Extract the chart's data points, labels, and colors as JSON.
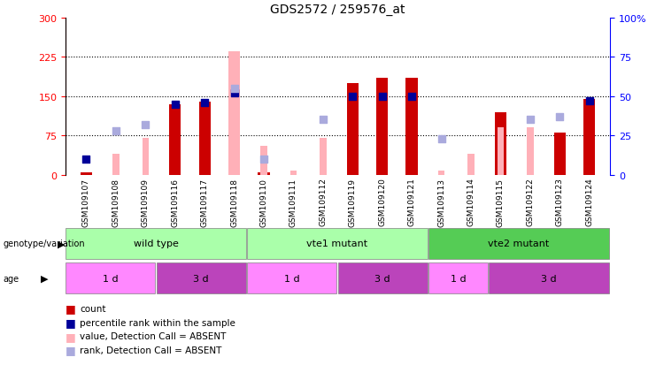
{
  "title": "GDS2572 / 259576_at",
  "samples": [
    "GSM109107",
    "GSM109108",
    "GSM109109",
    "GSM109116",
    "GSM109117",
    "GSM109118",
    "GSM109110",
    "GSM109111",
    "GSM109112",
    "GSM109119",
    "GSM109120",
    "GSM109121",
    "GSM109113",
    "GSM109114",
    "GSM109115",
    "GSM109122",
    "GSM109123",
    "GSM109124"
  ],
  "count_values": [
    5,
    null,
    null,
    135,
    140,
    null,
    5,
    null,
    null,
    175,
    185,
    185,
    null,
    null,
    120,
    null,
    80,
    145
  ],
  "count_absent": [
    null,
    null,
    null,
    null,
    null,
    235,
    null,
    null,
    null,
    null,
    null,
    null,
    null,
    null,
    null,
    null,
    null,
    null
  ],
  "rank_values": [
    10,
    null,
    null,
    45,
    46,
    52,
    null,
    null,
    null,
    50,
    50,
    50,
    null,
    null,
    null,
    null,
    null,
    47
  ],
  "rank_absent": [
    null,
    28,
    32,
    null,
    null,
    55,
    10,
    null,
    35,
    null,
    null,
    null,
    23,
    null,
    null,
    35,
    37,
    null
  ],
  "value_absent": [
    null,
    40,
    70,
    null,
    null,
    235,
    55,
    8,
    70,
    null,
    null,
    null,
    8,
    40,
    90,
    90,
    null,
    null
  ],
  "ylim_left": [
    0,
    300
  ],
  "ylim_right": [
    0,
    100
  ],
  "yticks_left": [
    0,
    75,
    150,
    225,
    300
  ],
  "yticks_right": [
    0,
    25,
    50,
    75,
    100
  ],
  "ytick_labels_right": [
    "0",
    "25",
    "50",
    "75",
    "100%"
  ],
  "hlines": [
    75,
    150,
    225
  ],
  "count_color": "#CC0000",
  "count_absent_color": "#FFB0B8",
  "rank_color": "#000099",
  "rank_absent_color": "#AAAADD",
  "legend_items": [
    {
      "label": "count",
      "color": "#CC0000"
    },
    {
      "label": "percentile rank within the sample",
      "color": "#000099"
    },
    {
      "label": "value, Detection Call = ABSENT",
      "color": "#FFB0B8"
    },
    {
      "label": "rank, Detection Call = ABSENT",
      "color": "#AAAADD"
    }
  ],
  "geno_groups": [
    {
      "label": "wild type",
      "start": 0,
      "end": 6,
      "color": "#AAFFAA"
    },
    {
      "label": "vte1 mutant",
      "start": 6,
      "end": 12,
      "color": "#AAFFAA"
    },
    {
      "label": "vte2 mutant",
      "start": 12,
      "end": 18,
      "color": "#55CC55"
    }
  ],
  "age_groups": [
    {
      "label": "1 d",
      "start": 0,
      "end": 3,
      "color": "#FF88FF"
    },
    {
      "label": "3 d",
      "start": 3,
      "end": 6,
      "color": "#BB44BB"
    },
    {
      "label": "1 d",
      "start": 6,
      "end": 9,
      "color": "#FF88FF"
    },
    {
      "label": "3 d",
      "start": 9,
      "end": 12,
      "color": "#BB44BB"
    },
    {
      "label": "1 d",
      "start": 12,
      "end": 14,
      "color": "#FF88FF"
    },
    {
      "label": "3 d",
      "start": 14,
      "end": 18,
      "color": "#BB44BB"
    }
  ],
  "bg_color": "#ffffff",
  "xticklabel_bg": "#CCCCCC"
}
